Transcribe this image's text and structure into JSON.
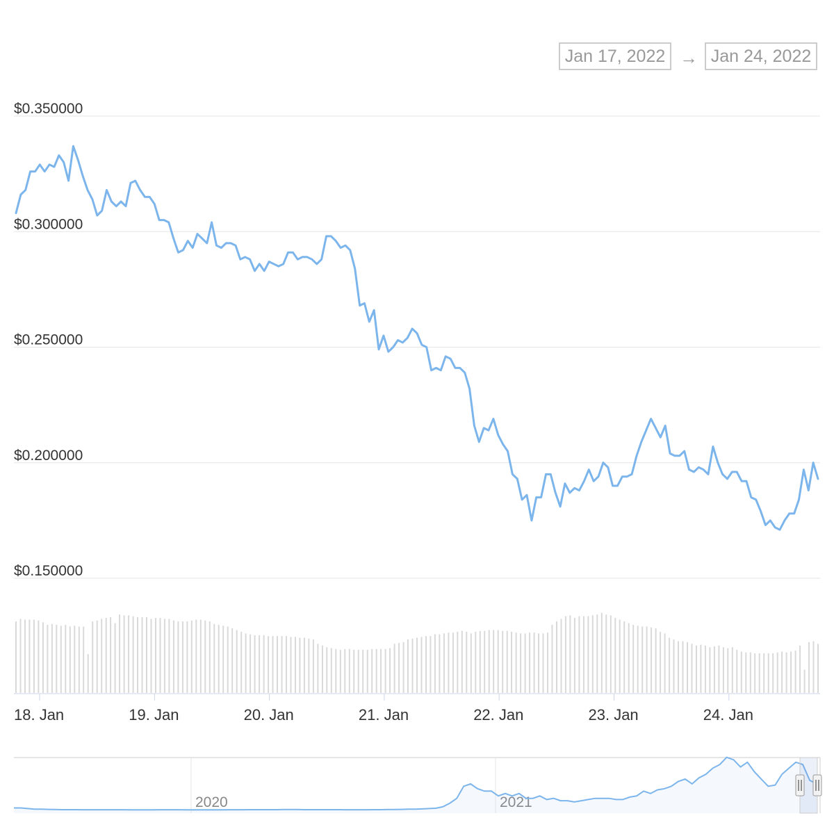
{
  "range_selector": {
    "from": "Jan 17, 2022",
    "arrow": "→",
    "to": "Jan 24, 2022"
  },
  "colors": {
    "price_line": "#7cb5ec",
    "volume_bar": "#d9d9d9",
    "grid": "#e6e6e6",
    "axis": "#ccd6eb"
  },
  "chart_data": [
    {
      "type": "line",
      "title": "",
      "series": [
        {
          "values": [
            0.308,
            0.316,
            0.318,
            0.326,
            0.326,
            0.329,
            0.326,
            0.329,
            0.328,
            0.333,
            0.33,
            0.322,
            0.337,
            0.331,
            0.324,
            0.318,
            0.314,
            0.307,
            0.309,
            0.318,
            0.313,
            0.311,
            0.313,
            0.311,
            0.321,
            0.322,
            0.318,
            0.315,
            0.315,
            0.312,
            0.305,
            0.305,
            0.304,
            0.297,
            0.291,
            0.292,
            0.296,
            0.293,
            0.299,
            0.297,
            0.295,
            0.304,
            0.294,
            0.293,
            0.295,
            0.295,
            0.294,
            0.288,
            0.289,
            0.288,
            0.283,
            0.286,
            0.283,
            0.287,
            0.286,
            0.285,
            0.286,
            0.291,
            0.291,
            0.288,
            0.289,
            0.289,
            0.288,
            0.286,
            0.288,
            0.298,
            0.298,
            0.296,
            0.293,
            0.294,
            0.292,
            0.284,
            0.268,
            0.269,
            0.261,
            0.266,
            0.249,
            0.255,
            0.248,
            0.25,
            0.253,
            0.252,
            0.254,
            0.258,
            0.256,
            0.251,
            0.25,
            0.24,
            0.241,
            0.24,
            0.246,
            0.245,
            0.241,
            0.241,
            0.239,
            0.232,
            0.216,
            0.209,
            0.215,
            0.214,
            0.219,
            0.212,
            0.208,
            0.205,
            0.195,
            0.193,
            0.184,
            0.186,
            0.175,
            0.185,
            0.185,
            0.195,
            0.195,
            0.187,
            0.181,
            0.191,
            0.187,
            0.189,
            0.188,
            0.192,
            0.197,
            0.192,
            0.194,
            0.2,
            0.198,
            0.19,
            0.19,
            0.194,
            0.194,
            0.195,
            0.203,
            0.209,
            0.214,
            0.219,
            0.215,
            0.211,
            0.216,
            0.204,
            0.203,
            0.203,
            0.205,
            0.197,
            0.196,
            0.198,
            0.197,
            0.195,
            0.207,
            0.2,
            0.195,
            0.193,
            0.196,
            0.196,
            0.192,
            0.192,
            0.185,
            0.184,
            0.179,
            0.173,
            0.175,
            0.172,
            0.171,
            0.175,
            0.178,
            0.178,
            0.184,
            0.197,
            0.188,
            0.2,
            0.193
          ]
        }
      ],
      "x_start": "2022-01-17",
      "x_end": "2022-01-24",
      "ylim": [
        0.15,
        0.35
      ],
      "yticks": [
        "$0.350000",
        "$0.300000",
        "$0.250000",
        "$0.200000",
        "$0.150000"
      ],
      "xticks": [
        "18. Jan",
        "19. Jan",
        "20. Jan",
        "21. Jan",
        "22. Jan",
        "23. Jan",
        "24. Jan"
      ],
      "grid": true,
      "legend": "none"
    },
    {
      "type": "bar",
      "title": "",
      "series": [
        {
          "values": [
            0.83,
            0.86,
            0.85,
            0.85,
            0.85,
            0.84,
            0.82,
            0.79,
            0.8,
            0.79,
            0.78,
            0.79,
            0.77,
            0.78,
            0.77,
            0.77,
            0.45,
            0.83,
            0.84,
            0.86,
            0.87,
            0.88,
            0.81,
            0.91,
            0.9,
            0.9,
            0.89,
            0.88,
            0.88,
            0.88,
            0.86,
            0.87,
            0.87,
            0.86,
            0.86,
            0.84,
            0.83,
            0.83,
            0.83,
            0.84,
            0.85,
            0.85,
            0.84,
            0.83,
            0.8,
            0.79,
            0.78,
            0.77,
            0.75,
            0.73,
            0.71,
            0.69,
            0.68,
            0.67,
            0.67,
            0.67,
            0.66,
            0.66,
            0.66,
            0.66,
            0.66,
            0.65,
            0.65,
            0.64,
            0.64,
            0.63,
            0.62,
            0.57,
            0.55,
            0.53,
            0.52,
            0.51,
            0.5,
            0.51,
            0.51,
            0.5,
            0.5,
            0.5,
            0.5,
            0.51,
            0.51,
            0.51,
            0.51,
            0.52,
            0.57,
            0.58,
            0.59,
            0.62,
            0.63,
            0.64,
            0.65,
            0.66,
            0.66,
            0.68,
            0.68,
            0.69,
            0.7,
            0.7,
            0.71,
            0.72,
            0.71,
            0.69,
            0.71,
            0.72,
            0.72,
            0.73,
            0.73,
            0.73,
            0.72,
            0.72,
            0.71,
            0.7,
            0.69,
            0.69,
            0.7,
            0.7,
            0.69,
            0.69,
            0.7,
            0.79,
            0.83,
            0.86,
            0.89,
            0.9,
            0.87,
            0.89,
            0.89,
            0.89,
            0.9,
            0.91,
            0.93,
            0.91,
            0.9,
            0.87,
            0.85,
            0.83,
            0.81,
            0.79,
            0.78,
            0.77,
            0.77,
            0.76,
            0.75,
            0.71,
            0.69,
            0.64,
            0.62,
            0.6,
            0.6,
            0.59,
            0.57,
            0.55,
            0.56,
            0.55,
            0.53,
            0.54,
            0.55,
            0.53,
            0.52,
            0.53,
            0.5,
            0.48,
            0.47,
            0.47,
            0.46,
            0.46,
            0.46,
            0.46,
            0.46,
            0.47,
            0.48,
            0.47,
            0.48,
            0.49,
            0.55,
            0.27,
            0.59,
            0.6,
            0.57
          ]
        }
      ],
      "grid": false,
      "legend": "none"
    },
    {
      "type": "area",
      "title": "",
      "xticks": [
        "2020",
        "2021"
      ],
      "series": [
        {
          "values": [
            0.02,
            0.02,
            0.015,
            0.01,
            0.01,
            0.008,
            0.007,
            0.006,
            0.006,
            0.006,
            0.005,
            0.005,
            0.005,
            0.005,
            0.005,
            0.005,
            0.005,
            0.004,
            0.004,
            0.004,
            0.004,
            0.005,
            0.005,
            0.005,
            0.005,
            0.004,
            0.004,
            0.004,
            0.004,
            0.004,
            0.004,
            0.005,
            0.005,
            0.005,
            0.006,
            0.006,
            0.006,
            0.006,
            0.006,
            0.007,
            0.007,
            0.007,
            0.006,
            0.006,
            0.006,
            0.006,
            0.006,
            0.006,
            0.005,
            0.005,
            0.005,
            0.005,
            0.006,
            0.006,
            0.007,
            0.007,
            0.008,
            0.01,
            0.01,
            0.012,
            0.015,
            0.018,
            0.03,
            0.06,
            0.1,
            0.2,
            0.22,
            0.18,
            0.16,
            0.16,
            0.12,
            0.14,
            0.12,
            0.14,
            0.1,
            0.1,
            0.12,
            0.09,
            0.1,
            0.08,
            0.08,
            0.07,
            0.08,
            0.09,
            0.1,
            0.1,
            0.1,
            0.09,
            0.09,
            0.11,
            0.12,
            0.16,
            0.14,
            0.17,
            0.18,
            0.2,
            0.24,
            0.26,
            0.22,
            0.27,
            0.3,
            0.35,
            0.38,
            0.44,
            0.42,
            0.36,
            0.4,
            0.32,
            0.26,
            0.2,
            0.21,
            0.3,
            0.35,
            0.4,
            0.38,
            0.25,
            0.22
          ]
        }
      ],
      "grid": true,
      "legend": "none"
    }
  ]
}
